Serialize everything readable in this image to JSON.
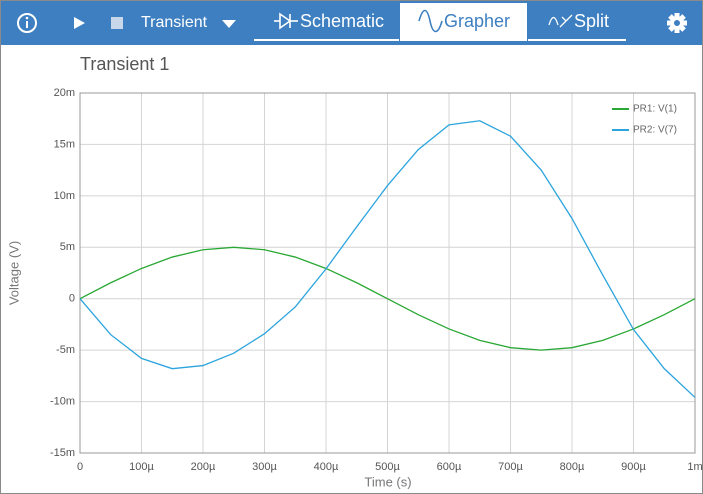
{
  "toolbar": {
    "mode": "Transient",
    "tabs": [
      "Schematic",
      "Grapher",
      "Split"
    ],
    "active_tab": 1
  },
  "chart_data": {
    "type": "line",
    "title": "Transient 1",
    "x_label": "Time (s)",
    "y_label": "Voltage (V)",
    "x": [
      0,
      5e-05,
      0.0001,
      0.00015,
      0.0002,
      0.00025,
      0.0003,
      0.00035,
      0.0004,
      0.00045,
      0.0005,
      0.00055,
      0.0006,
      0.00065,
      0.0007,
      0.00075,
      0.0008,
      0.00085,
      0.0009,
      0.00095,
      0.001
    ],
    "series": [
      {
        "name": "PR1: V(1)",
        "color": "#2aa835",
        "values": [
          0,
          0.00155,
          0.00294,
          0.00405,
          0.00476,
          0.005,
          0.00476,
          0.00405,
          0.00294,
          0.00155,
          0,
          -0.00155,
          -0.00294,
          -0.00405,
          -0.00476,
          -0.005,
          -0.00476,
          -0.00405,
          -0.00294,
          -0.00155,
          0
        ]
      },
      {
        "name": "PR2: V(7)",
        "color": "#2ba4dd",
        "values": [
          0,
          -0.0035,
          -0.0058,
          -0.0068,
          -0.0065,
          -0.0053,
          -0.0034,
          -0.0008,
          0.0029,
          0.007,
          0.011,
          0.0145,
          0.0169,
          0.0173,
          0.0158,
          0.0125,
          0.0078,
          0.0023,
          -0.003,
          -0.0068,
          -0.0096
        ]
      }
    ],
    "xlim": [
      0,
      0.001
    ],
    "ylim": [
      -0.015,
      0.02
    ],
    "xticks": [
      0,
      {
        "value": 0.0001,
        "label": "100µ"
      },
      {
        "value": 0.0002,
        "label": "200µ"
      },
      {
        "value": 0.0003,
        "label": "300µ"
      },
      {
        "value": 0.0004,
        "label": "400µ"
      },
      {
        "value": 0.0005,
        "label": "500µ"
      },
      {
        "value": 0.0006,
        "label": "600µ"
      },
      {
        "value": 0.0007,
        "label": "700µ"
      },
      {
        "value": 0.0008,
        "label": "800µ"
      },
      {
        "value": 0.0009,
        "label": "900µ"
      },
      {
        "value": 0.001,
        "label": "1m"
      }
    ],
    "yticks": [
      {
        "value": -0.015,
        "label": "-15m"
      },
      {
        "value": -0.01,
        "label": "-10m"
      },
      {
        "value": -0.005,
        "label": "-5m"
      },
      0,
      {
        "value": 0.005,
        "label": "5m"
      },
      {
        "value": 0.01,
        "label": "10m"
      },
      {
        "value": 0.015,
        "label": "15m"
      },
      {
        "value": 0.02,
        "label": "20m"
      }
    ],
    "grid": true,
    "legend": "upper right"
  }
}
